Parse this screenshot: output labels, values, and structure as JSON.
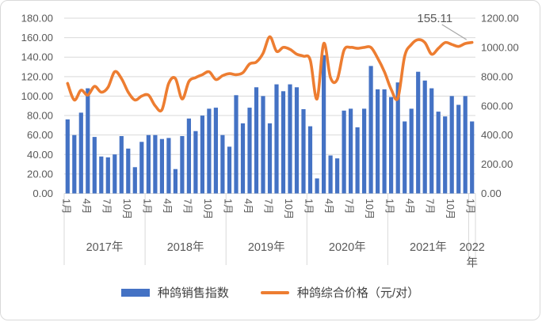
{
  "chart_data": {
    "type": "bar+line-combo",
    "title": "",
    "background": "#FFFFFF",
    "gridline_color": "#D9D9D9",
    "axis_text_color": "#595959",
    "grid": "horizontal-on",
    "legend_position": "bottom-center",
    "left_axis": {
      "min": 0,
      "max": 180,
      "step": 20,
      "labels": [
        "180.00",
        "160.00",
        "140.00",
        "120.00",
        "100.00",
        "80.00",
        "60.00",
        "40.00",
        "20.00",
        "0.00"
      ]
    },
    "right_axis": {
      "min": 0,
      "max": 1200,
      "step": 200,
      "labels": [
        "1200.00",
        "1000.00",
        "800.00",
        "600.00",
        "400.00",
        "200.00",
        "0.00"
      ]
    },
    "x_axis": {
      "month_tick_labels": [
        "1月",
        "4月",
        "7月",
        "10月"
      ],
      "years": [
        {
          "label": "2017年",
          "months": 12
        },
        {
          "label": "2018年",
          "months": 12
        },
        {
          "label": "2019年",
          "months": 12
        },
        {
          "label": "2020年",
          "months": 12
        },
        {
          "label": "2021年",
          "months": 12
        },
        {
          "label": "2022年",
          "months": 1
        }
      ]
    },
    "series": [
      {
        "name": "种鸽销售指数",
        "type": "bar",
        "axis": "right",
        "color": "#4472C4",
        "values": [
          507,
          400,
          553,
          720,
          387,
          253,
          247,
          267,
          393,
          307,
          180,
          353,
          400,
          400,
          373,
          380,
          167,
          393,
          513,
          427,
          533,
          580,
          587,
          400,
          320,
          673,
          480,
          587,
          727,
          667,
          480,
          747,
          700,
          747,
          727,
          577,
          460,
          103,
          947,
          260,
          240,
          567,
          580,
          453,
          580,
          873,
          713,
          713,
          660,
          760,
          493,
          580,
          833,
          773,
          720,
          560,
          527,
          667,
          607,
          667,
          493
        ]
      },
      {
        "name": "种鸽综合价格（元/对）",
        "type": "line",
        "axis": "left",
        "color": "#ED7D31",
        "values": [
          113,
          96,
          106,
          101,
          110,
          104,
          109,
          125,
          118,
          104,
          96,
          100,
          101,
          90,
          86,
          113,
          118,
          97,
          115,
          119,
          122,
          125,
          117,
          121,
          123,
          122,
          124,
          133,
          135,
          144,
          161,
          146,
          150,
          148,
          143,
          141,
          137,
          97,
          154,
          119,
          117,
          147,
          150,
          149,
          150,
          150,
          139,
          125,
          107,
          98,
          141,
          153,
          158,
          155,
          143,
          149,
          155,
          153,
          151,
          154,
          155.11
        ]
      }
    ],
    "annotation": {
      "text": "155.11",
      "value": 155.11,
      "point": "2022-01",
      "series": "种鸽综合价格（元/对）"
    }
  }
}
